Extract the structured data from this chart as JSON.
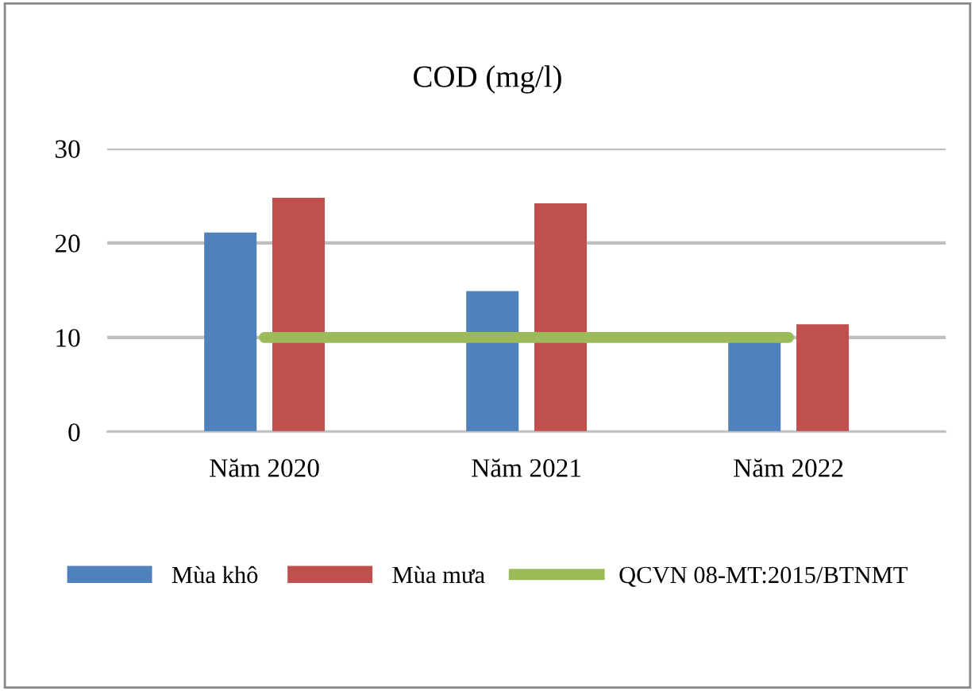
{
  "chart_data": {
    "type": "bar",
    "title": "COD (mg/l)",
    "categories": [
      "Năm 2020",
      "Năm 2021",
      "Năm 2022"
    ],
    "series": [
      {
        "name": "Mùa khô",
        "color": "#4f81bd",
        "values": [
          21.1,
          14.9,
          9.5
        ]
      },
      {
        "name": "Mùa mưa",
        "color": "#c0504d",
        "values": [
          24.8,
          24.2,
          11.4
        ]
      },
      {
        "name": "QCVN 08-MT:2015/BTNMT",
        "type": "line",
        "color": "#9bbb59",
        "values": [
          10,
          10,
          10
        ]
      }
    ],
    "ylim": [
      0,
      30
    ],
    "yticks": [
      0,
      10,
      20,
      30
    ],
    "grid": "y",
    "legend": "bottom",
    "marker": "none",
    "line_style": "solid"
  }
}
